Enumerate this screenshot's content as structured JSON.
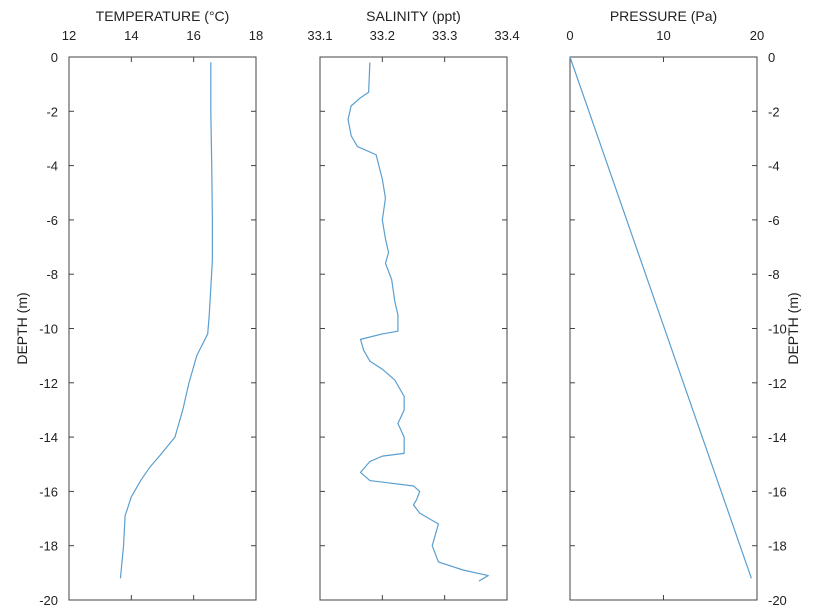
{
  "chart_data": [
    {
      "type": "line",
      "title": "TEMPERATURE (°C)",
      "xlabel": "TEMPERATURE (°C)",
      "ylabel": "DEPTH (m)",
      "xlim": [
        12,
        18
      ],
      "ylim": [
        -20,
        0
      ],
      "x_ticks": [
        "12",
        "14",
        "16",
        "18"
      ],
      "y_ticks": [
        "0",
        "-2",
        "-4",
        "-6",
        "-8",
        "-10",
        "-12",
        "-14",
        "-16",
        "-18",
        "-20"
      ],
      "grid": false,
      "line_color": "#5b9fd0",
      "points": [
        [
          16.55,
          -0.2
        ],
        [
          16.55,
          -2
        ],
        [
          16.58,
          -4
        ],
        [
          16.6,
          -6
        ],
        [
          16.6,
          -7.5
        ],
        [
          16.55,
          -8.5
        ],
        [
          16.5,
          -9.5
        ],
        [
          16.45,
          -10.2
        ],
        [
          16.1,
          -11
        ],
        [
          15.85,
          -12
        ],
        [
          15.65,
          -13
        ],
        [
          15.4,
          -14
        ],
        [
          14.9,
          -14.7
        ],
        [
          14.6,
          -15.1
        ],
        [
          14.3,
          -15.6
        ],
        [
          14.0,
          -16.2
        ],
        [
          13.8,
          -16.9
        ],
        [
          13.75,
          -18
        ],
        [
          13.65,
          -19.2
        ]
      ]
    },
    {
      "type": "line",
      "title": "SALINITY (ppt)",
      "xlabel": "SALINITY (ppt)",
      "ylabel": "",
      "xlim": [
        33.1,
        33.4
      ],
      "ylim": [
        -20,
        0
      ],
      "x_ticks": [
        "33.1",
        "33.2",
        "33.3",
        "33.4"
      ],
      "grid": false,
      "line_color": "#5b9fd0",
      "points": [
        [
          33.18,
          -0.2
        ],
        [
          33.178,
          -1.3
        ],
        [
          33.165,
          -1.5
        ],
        [
          33.15,
          -1.8
        ],
        [
          33.145,
          -2.3
        ],
        [
          33.15,
          -2.9
        ],
        [
          33.16,
          -3.3
        ],
        [
          33.19,
          -3.6
        ],
        [
          33.2,
          -4.5
        ],
        [
          33.205,
          -5.2
        ],
        [
          33.2,
          -6
        ],
        [
          33.205,
          -6.7
        ],
        [
          33.21,
          -7.2
        ],
        [
          33.205,
          -7.6
        ],
        [
          33.215,
          -8.2
        ],
        [
          33.22,
          -9
        ],
        [
          33.225,
          -9.5
        ],
        [
          33.225,
          -10.1
        ],
        [
          33.2,
          -10.2
        ],
        [
          33.165,
          -10.4
        ],
        [
          33.17,
          -10.8
        ],
        [
          33.18,
          -11.2
        ],
        [
          33.2,
          -11.5
        ],
        [
          33.22,
          -11.9
        ],
        [
          33.235,
          -12.5
        ],
        [
          33.235,
          -13
        ],
        [
          33.225,
          -13.5
        ],
        [
          33.235,
          -14
        ],
        [
          33.235,
          -14.6
        ],
        [
          33.2,
          -14.7
        ],
        [
          33.18,
          -14.9
        ],
        [
          33.165,
          -15.3
        ],
        [
          33.18,
          -15.6
        ],
        [
          33.25,
          -15.8
        ],
        [
          33.26,
          -16
        ],
        [
          33.255,
          -16.3
        ],
        [
          33.25,
          -16.5
        ],
        [
          33.26,
          -16.8
        ],
        [
          33.29,
          -17.2
        ],
        [
          33.285,
          -17.6
        ],
        [
          33.28,
          -18
        ],
        [
          33.29,
          -18.6
        ],
        [
          33.33,
          -18.9
        ],
        [
          33.37,
          -19.1
        ],
        [
          33.355,
          -19.3
        ]
      ]
    },
    {
      "type": "line",
      "title": "PRESSURE (Pa)",
      "xlabel": "PRESSURE (Pa)",
      "ylabel": "DEPTH (m)",
      "xlim": [
        0,
        20
      ],
      "ylim": [
        -20,
        0
      ],
      "x_ticks": [
        "0",
        "10",
        "20"
      ],
      "y_ticks": [
        "0",
        "-2",
        "-4",
        "-6",
        "-8",
        "-10",
        "-12",
        "-14",
        "-16",
        "-18",
        "-20"
      ],
      "grid": false,
      "line_color": "#5b9fd0",
      "points": [
        [
          0,
          0
        ],
        [
          19.4,
          -19.2
        ]
      ]
    }
  ]
}
